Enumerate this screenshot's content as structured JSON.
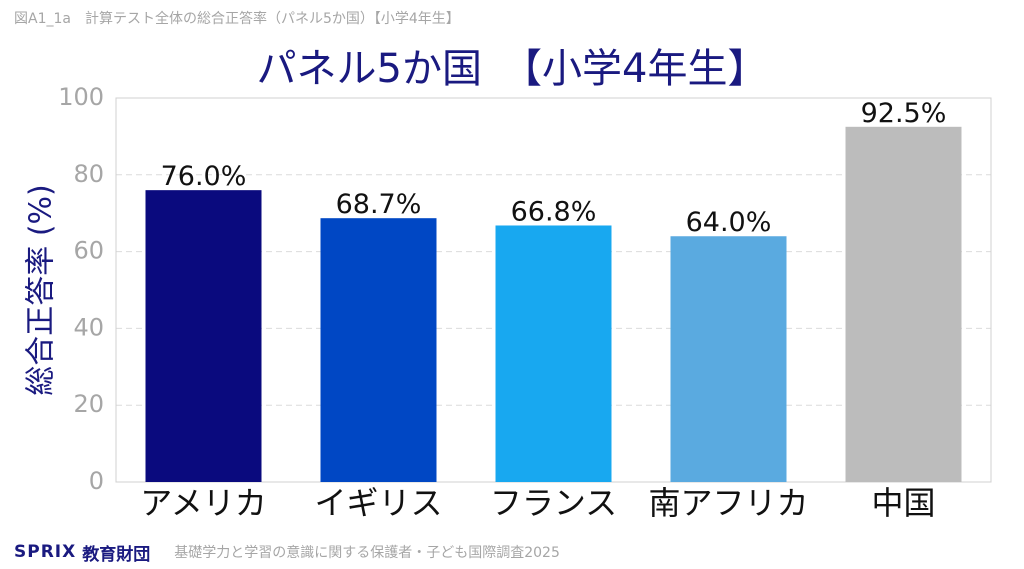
{
  "figure_caption": "図A1_1a　計算テスト全体の総合正答率（パネル5か国）【小学4年生】",
  "footer": {
    "brand_logo": "SPRIX",
    "brand_org": "教育財団",
    "source_note": "基礎学力と学習の意識に関する保護者・子ども国際調査2025"
  },
  "chart_data": {
    "type": "bar",
    "title": "パネル5か国　【小学4年生】",
    "ylabel": "総合正答率 (%)",
    "xlabel": "",
    "ylim": [
      0,
      100
    ],
    "yticks": [
      0,
      20,
      40,
      60,
      80,
      100
    ],
    "grid": true,
    "categories": [
      "アメリカ",
      "イギリス",
      "フランス",
      "南アフリカ",
      "中国"
    ],
    "values": [
      76.0,
      68.7,
      66.8,
      64.0,
      92.5
    ],
    "value_labels": [
      "76.0%",
      "68.7%",
      "66.8%",
      "64.0%",
      "92.5%"
    ],
    "colors": [
      "#0a0a7e",
      "#0047c4",
      "#18a8f0",
      "#5aaae0",
      "#bcbcbc"
    ]
  }
}
